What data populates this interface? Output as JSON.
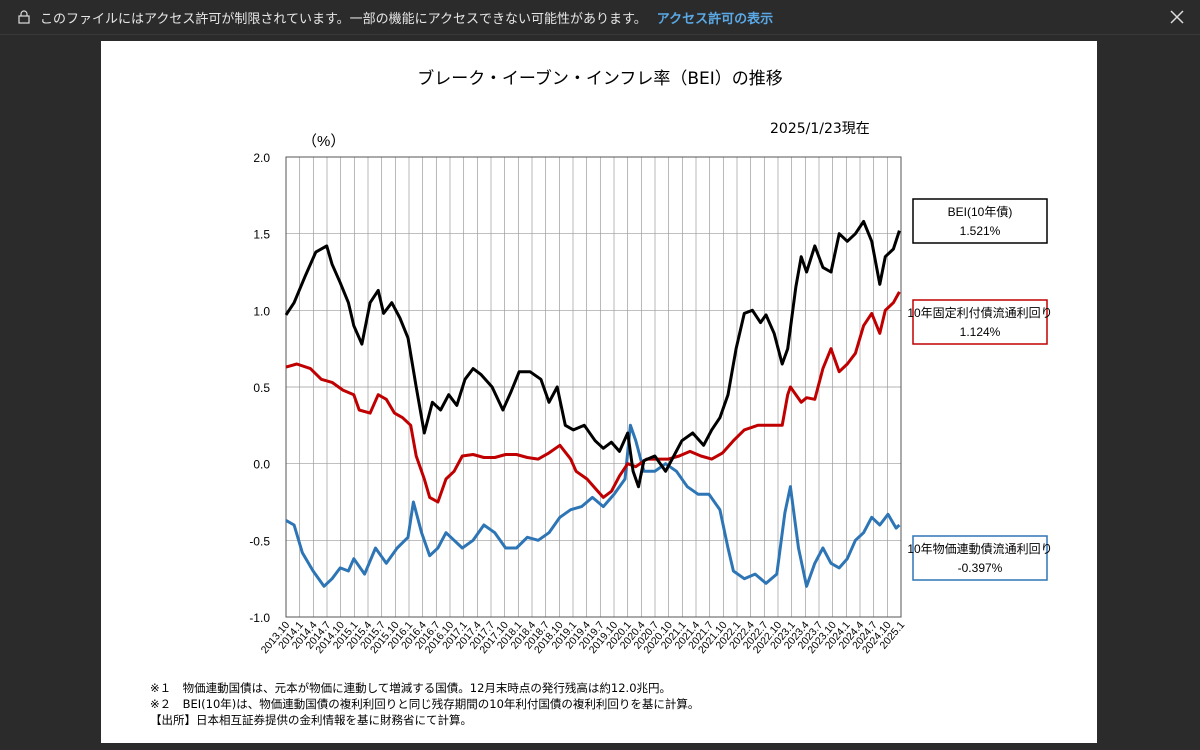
{
  "banner": {
    "message": "このファイルにはアクセス許可が制限されています。一部の機能にアクセスできない可能性があります。",
    "link": "アクセス許可の表示",
    "lock_icon": "lock-icon",
    "close_icon": "close-icon"
  },
  "chart_data": {
    "type": "line",
    "title": "ブレーク・イーブン・インフレ率（BEI）の推移",
    "as_of": "2025/1/23現在",
    "ylabel": "（%）",
    "ylim": [
      -1.0,
      2.0
    ],
    "yticks": [
      "2.0",
      "1.5",
      "1.0",
      "0.5",
      "0.0",
      "-0.5",
      "-1.0"
    ],
    "grid": true,
    "x_ticks": [
      "2013.10",
      "2014.1",
      "2014.4",
      "2014.7",
      "2014.10",
      "2015.1",
      "2015.4",
      "2015.7",
      "2015.10",
      "2016.1",
      "2016.4",
      "2016.7",
      "2016.10",
      "2017.1",
      "2017.4",
      "2017.7",
      "2017.10",
      "2018.1",
      "2018.4",
      "2018.7",
      "2018.10",
      "2019.1",
      "2019.4",
      "2019.7",
      "2019.10",
      "2020.1",
      "2020.4",
      "2020.7",
      "2020.10",
      "2021.1",
      "2021.4",
      "2021.7",
      "2021.10",
      "2022.1",
      "2022.4",
      "2022.7",
      "2022.10",
      "2023.1",
      "2023.4",
      "2023.7",
      "2023.10",
      "2024.1",
      "2024.4",
      "2024.7",
      "2024.10",
      "2025.1"
    ],
    "series": [
      {
        "name": "BEI(10年債)",
        "latest": "1.521%",
        "color": "#000000",
        "x": [
          2013.75,
          2013.9,
          2014.1,
          2014.3,
          2014.5,
          2014.6,
          2014.75,
          2014.9,
          2015.0,
          2015.15,
          2015.3,
          2015.45,
          2015.55,
          2015.7,
          2015.85,
          2016.0,
          2016.15,
          2016.3,
          2016.45,
          2016.6,
          2016.75,
          2016.9,
          2017.05,
          2017.2,
          2017.35,
          2017.55,
          2017.75,
          2017.9,
          2018.05,
          2018.25,
          2018.45,
          2018.6,
          2018.75,
          2018.9,
          2019.05,
          2019.25,
          2019.45,
          2019.6,
          2019.75,
          2019.9,
          2020.05,
          2020.15,
          2020.25,
          2020.35,
          2020.55,
          2020.75,
          2020.9,
          2021.05,
          2021.25,
          2021.45,
          2021.6,
          2021.75,
          2021.9,
          2022.05,
          2022.2,
          2022.35,
          2022.5,
          2022.6,
          2022.75,
          2022.9,
          2023.0,
          2023.15,
          2023.25,
          2023.35,
          2023.5,
          2023.65,
          2023.8,
          2023.95,
          2024.1,
          2024.25,
          2024.4,
          2024.55,
          2024.7,
          2024.8,
          2024.95,
          2025.06
        ],
        "values": [
          0.97,
          1.05,
          1.22,
          1.38,
          1.42,
          1.3,
          1.18,
          1.05,
          0.9,
          0.78,
          1.05,
          1.13,
          0.98,
          1.05,
          0.95,
          0.82,
          0.5,
          0.2,
          0.4,
          0.35,
          0.45,
          0.38,
          0.55,
          0.62,
          0.58,
          0.5,
          0.35,
          0.47,
          0.6,
          0.6,
          0.55,
          0.4,
          0.5,
          0.25,
          0.22,
          0.25,
          0.15,
          0.1,
          0.14,
          0.08,
          0.2,
          -0.05,
          -0.15,
          0.02,
          0.05,
          -0.05,
          0.05,
          0.15,
          0.2,
          0.12,
          0.22,
          0.3,
          0.45,
          0.75,
          0.98,
          1.0,
          0.92,
          0.97,
          0.85,
          0.65,
          0.75,
          1.15,
          1.35,
          1.25,
          1.42,
          1.28,
          1.25,
          1.5,
          1.45,
          1.5,
          1.58,
          1.45,
          1.17,
          1.35,
          1.4,
          1.52
        ]
      },
      {
        "name": "10年固定利付債流通利回り",
        "latest": "1.124%",
        "color": "#c00000",
        "x": [
          2013.75,
          2013.95,
          2014.2,
          2014.4,
          2014.6,
          2014.8,
          2015.0,
          2015.1,
          2015.3,
          2015.45,
          2015.6,
          2015.75,
          2015.9,
          2016.05,
          2016.15,
          2016.3,
          2016.4,
          2016.55,
          2016.7,
          2016.85,
          2017.0,
          2017.2,
          2017.4,
          2017.6,
          2017.8,
          2018.0,
          2018.2,
          2018.4,
          2018.6,
          2018.8,
          2019.0,
          2019.1,
          2019.3,
          2019.5,
          2019.6,
          2019.75,
          2019.9,
          2020.05,
          2020.2,
          2020.4,
          2020.6,
          2020.8,
          2021.0,
          2021.2,
          2021.4,
          2021.6,
          2021.8,
          2022.0,
          2022.2,
          2022.45,
          2022.7,
          2022.9,
          2023.0,
          2023.05,
          2023.25,
          2023.35,
          2023.5,
          2023.65,
          2023.8,
          2023.95,
          2024.1,
          2024.25,
          2024.4,
          2024.55,
          2024.7,
          2024.8,
          2024.95,
          2025.06
        ],
        "values": [
          0.63,
          0.65,
          0.62,
          0.55,
          0.53,
          0.48,
          0.45,
          0.35,
          0.33,
          0.45,
          0.42,
          0.33,
          0.3,
          0.25,
          0.05,
          -0.1,
          -0.22,
          -0.25,
          -0.1,
          -0.05,
          0.05,
          0.06,
          0.04,
          0.04,
          0.06,
          0.06,
          0.04,
          0.03,
          0.07,
          0.12,
          0.03,
          -0.05,
          -0.1,
          -0.18,
          -0.22,
          -0.18,
          -0.08,
          0.0,
          -0.02,
          0.03,
          0.03,
          0.03,
          0.05,
          0.08,
          0.05,
          0.03,
          0.07,
          0.15,
          0.22,
          0.25,
          0.25,
          0.25,
          0.45,
          0.5,
          0.4,
          0.43,
          0.42,
          0.62,
          0.75,
          0.6,
          0.65,
          0.72,
          0.9,
          0.98,
          0.85,
          1.0,
          1.05,
          1.12
        ]
      },
      {
        "name": "10年物価連動債流通利回り",
        "latest": "-0.397%",
        "color": "#2e75b6",
        "x": [
          2013.75,
          2013.9,
          2014.05,
          2014.25,
          2014.45,
          2014.6,
          2014.75,
          2014.9,
          2015.0,
          2015.2,
          2015.4,
          2015.6,
          2015.8,
          2016.0,
          2016.1,
          2016.25,
          2016.4,
          2016.55,
          2016.7,
          2016.85,
          2017.0,
          2017.2,
          2017.4,
          2017.6,
          2017.8,
          2018.0,
          2018.2,
          2018.4,
          2018.6,
          2018.8,
          2019.0,
          2019.2,
          2019.4,
          2019.6,
          2019.8,
          2020.0,
          2020.1,
          2020.2,
          2020.35,
          2020.55,
          2020.75,
          2020.95,
          2021.15,
          2021.35,
          2021.55,
          2021.75,
          2021.9,
          2022.0,
          2022.2,
          2022.4,
          2022.6,
          2022.8,
          2022.95,
          2023.05,
          2023.2,
          2023.35,
          2023.5,
          2023.65,
          2023.8,
          2023.95,
          2024.1,
          2024.25,
          2024.4,
          2024.55,
          2024.7,
          2024.85,
          2025.0,
          2025.06
        ],
        "values": [
          -0.37,
          -0.4,
          -0.58,
          -0.7,
          -0.8,
          -0.75,
          -0.68,
          -0.7,
          -0.62,
          -0.72,
          -0.55,
          -0.65,
          -0.55,
          -0.48,
          -0.25,
          -0.45,
          -0.6,
          -0.55,
          -0.45,
          -0.5,
          -0.55,
          -0.5,
          -0.4,
          -0.45,
          -0.55,
          -0.55,
          -0.48,
          -0.5,
          -0.45,
          -0.35,
          -0.3,
          -0.28,
          -0.22,
          -0.28,
          -0.2,
          -0.1,
          0.25,
          0.15,
          -0.05,
          -0.05,
          0.0,
          -0.05,
          -0.15,
          -0.2,
          -0.2,
          -0.3,
          -0.55,
          -0.7,
          -0.75,
          -0.72,
          -0.78,
          -0.72,
          -0.32,
          -0.15,
          -0.55,
          -0.8,
          -0.65,
          -0.55,
          -0.65,
          -0.68,
          -0.62,
          -0.5,
          -0.45,
          -0.35,
          -0.4,
          -0.33,
          -0.42,
          -0.4
        ]
      }
    ]
  },
  "notes": [
    "※１　物価連動国債は、元本が物価に連動して増減する国債。12月末時点の発行残高は約12.0兆円。",
    "※２　BEI(10年)は、物価連動国債の複利利回りと同じ残存期間の10年利付国債の複利利回りを基に計算。",
    "【出所】日本相互証券提供の金利情報を基に財務省にて計算。"
  ]
}
